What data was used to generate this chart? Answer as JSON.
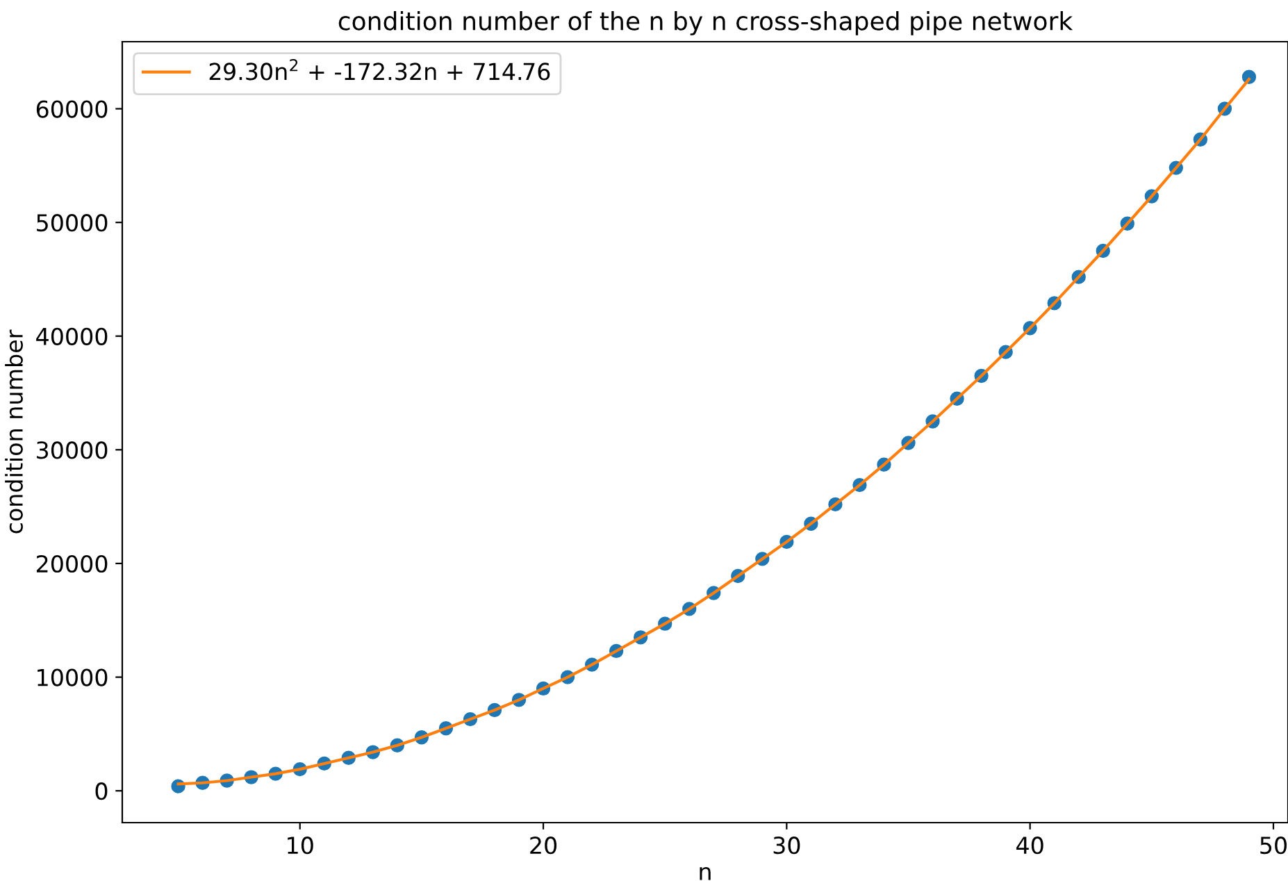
{
  "chart_data": {
    "type": "scatter",
    "title": "condition number of the n by n cross-shaped pipe network",
    "xlabel": "n",
    "ylabel": "condition number",
    "x": [
      5,
      6,
      7,
      8,
      9,
      10,
      11,
      12,
      13,
      14,
      15,
      16,
      17,
      18,
      19,
      20,
      21,
      22,
      23,
      24,
      25,
      26,
      27,
      28,
      29,
      30,
      31,
      32,
      33,
      34,
      35,
      36,
      37,
      38,
      39,
      40,
      41,
      42,
      43,
      44,
      45,
      46,
      47,
      48,
      49
    ],
    "series": [
      {
        "color": "#1f77b4",
        "marker": "circle",
        "values": [
          400,
          700,
          900,
          1200,
          1500,
          1900,
          2400,
          2900,
          3400,
          4000,
          4700,
          5500,
          6300,
          7100,
          8000,
          9000,
          10000,
          11100,
          12300,
          13500,
          14700,
          16000,
          17400,
          18900,
          20400,
          21900,
          23500,
          25200,
          26900,
          28700,
          30600,
          32500,
          34500,
          36500,
          38600,
          40700,
          42900,
          45200,
          47500,
          49900,
          52300,
          54800,
          57300,
          60000,
          62800
        ]
      },
      {
        "type": "line",
        "name": "29.30n$^{2}$ + -172.32n + 714.76",
        "color": "#ff7f0e",
        "line_style": "solid",
        "values": [
          600,
          700,
          900,
          1200,
          1500,
          1900,
          2400,
          2900,
          3400,
          4000,
          4700,
          5500,
          6300,
          7100,
          8000,
          9000,
          10000,
          11100,
          12300,
          13500,
          14700,
          16000,
          17400,
          18900,
          20400,
          21900,
          23500,
          25200,
          26900,
          28700,
          30600,
          32500,
          34500,
          36500,
          38600,
          40700,
          42900,
          45200,
          47500,
          49900,
          52300,
          54800,
          57300,
          60000,
          62600
        ]
      }
    ],
    "xlim": [
      2.7,
      50.6
    ],
    "ylim": [
      -2800,
      65900
    ],
    "xticks": [
      10,
      20,
      30,
      40,
      50
    ],
    "yticks": [
      0,
      10000,
      20000,
      30000,
      40000,
      50000,
      60000
    ],
    "grid": false,
    "legend": "top left"
  }
}
